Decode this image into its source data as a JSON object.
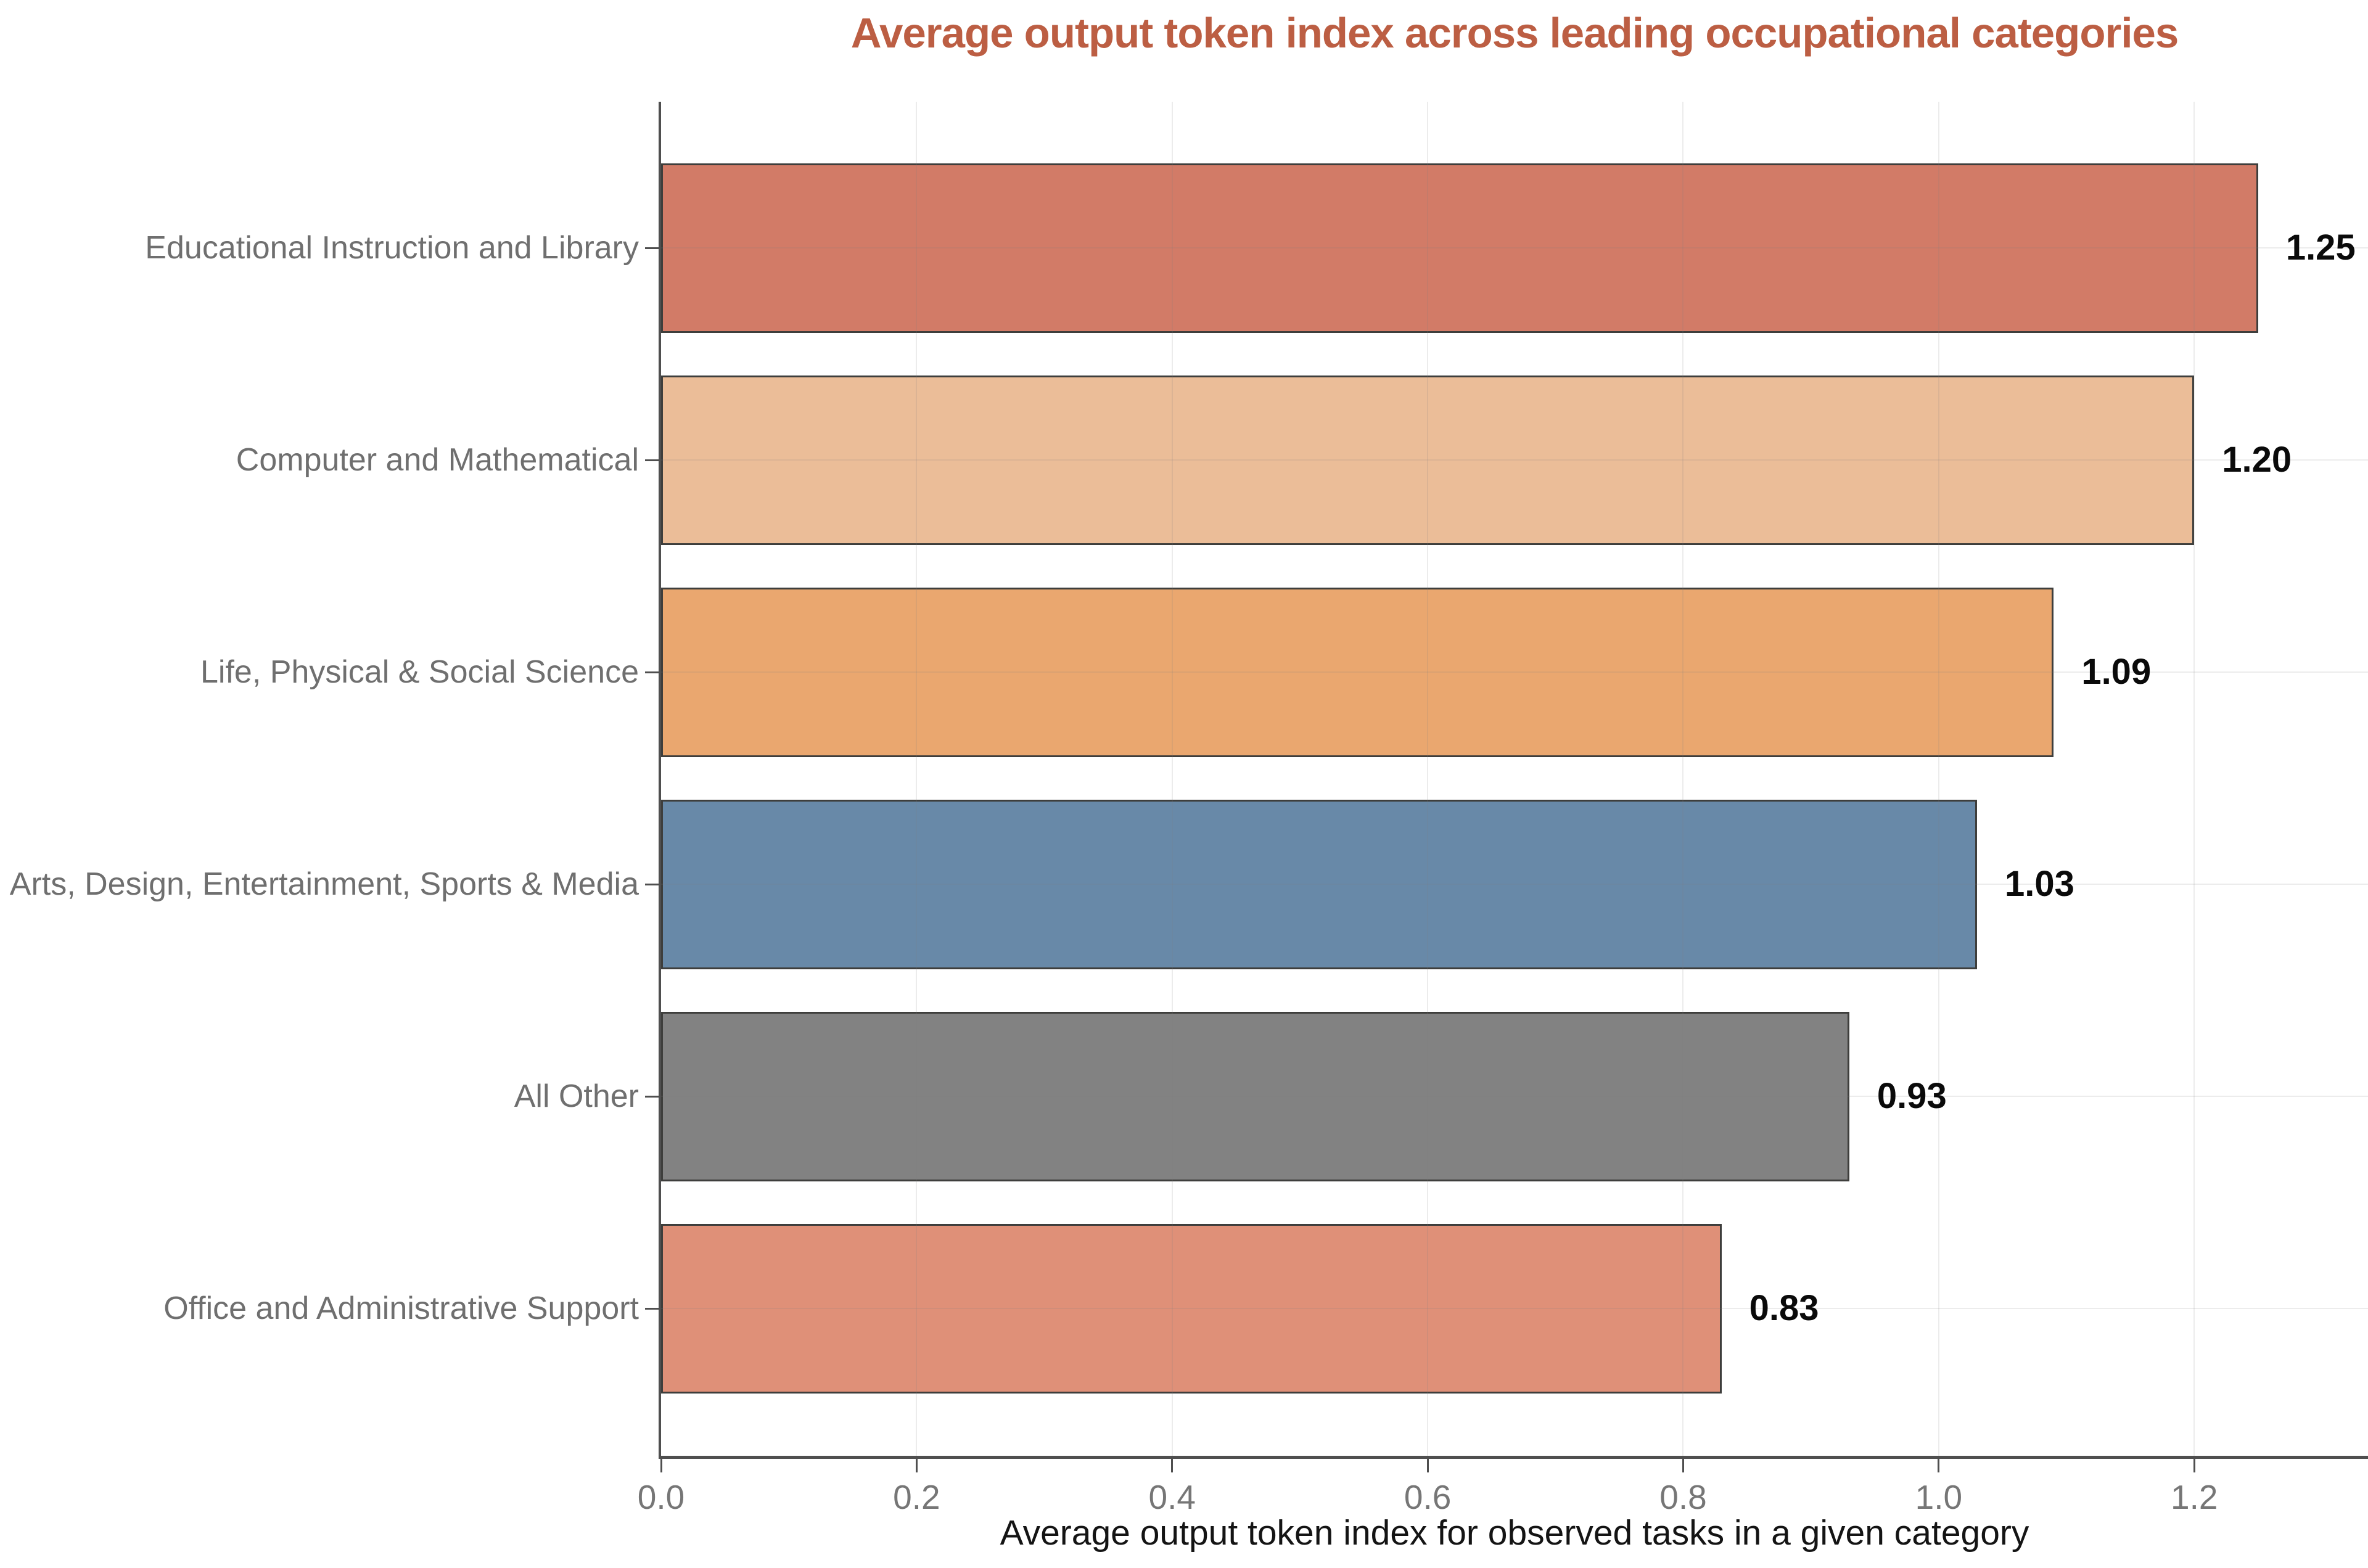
{
  "chart_data": {
    "type": "bar",
    "orientation": "horizontal",
    "title": "Average output token index across leading occupational categories",
    "xlabel": "Average output token index for observed tasks in a given category",
    "categories": [
      "Educational Instruction and Library",
      "Computer and Mathematical",
      "Life, Physical & Social Science",
      "Arts, Design, Entertainment, Sports & Media",
      "All Other",
      "Office and Administrative Support"
    ],
    "values": [
      1.25,
      1.2,
      1.09,
      1.03,
      0.93,
      0.83
    ],
    "value_labels": [
      "1.25",
      "1.20",
      "1.09",
      "1.03",
      "0.93",
      "0.83"
    ],
    "bar_colors": [
      "#D27B67",
      "#EBBD98",
      "#EAA76F",
      "#6889A8",
      "#828282",
      "#DF9078"
    ],
    "bar_edge_color": "#3E3E3C",
    "xlim": [
      0,
      1.336
    ],
    "x_ticks": [
      0,
      0.2,
      0.4,
      0.6,
      0.8,
      1.0,
      1.2
    ],
    "x_tick_labels": [
      "0.0",
      "0.2",
      "0.4",
      "0.6",
      "0.8",
      "1.0",
      "1.2"
    ],
    "grid": true,
    "legend": false,
    "styles": {
      "title_color": "#BC5E43",
      "category_label_color": "#6F6F6F",
      "tick_label_color": "#767676",
      "value_label_color": "#0A0A0A",
      "xlabel_color": "#141414",
      "axis_color": "#4F4F4F",
      "background": "#FFFFFF"
    }
  }
}
